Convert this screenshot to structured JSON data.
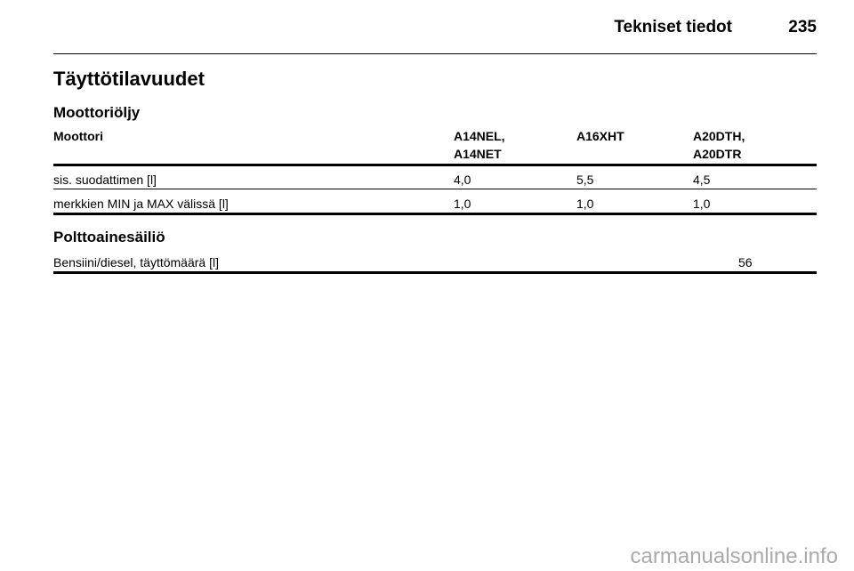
{
  "header": {
    "section": "Tekniset tiedot",
    "page_number": "235"
  },
  "title": "Täyttötilavuudet",
  "oil": {
    "heading": "Moottoriöljy",
    "table": {
      "columns": [
        "Moottori",
        [
          "A14NEL,",
          "A14NET"
        ],
        "A16XHT",
        [
          "A20DTH,",
          "A20DTR"
        ]
      ],
      "rows": [
        [
          "sis. suodattimen [l]",
          "4,0",
          "5,5",
          "4,5"
        ],
        [
          "merkkien MIN ja MAX välissä [l]",
          "1,0",
          "1,0",
          "1,0"
        ]
      ]
    }
  },
  "fuel": {
    "heading": "Polttoainesäiliö",
    "table": {
      "rows": [
        [
          "Bensiini/diesel, täyttömäärä [l]",
          "56"
        ]
      ]
    }
  },
  "watermark": "carmanualsonline.info"
}
